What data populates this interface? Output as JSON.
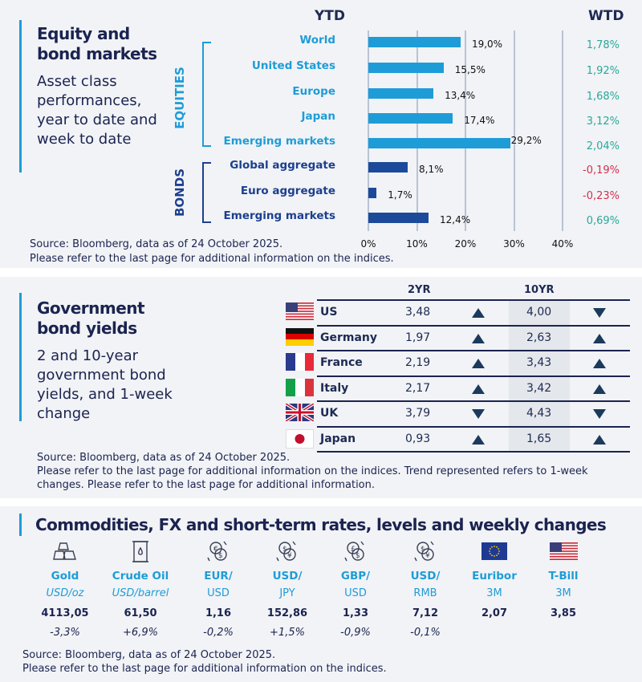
{
  "section1": {
    "title": "Equity and bond markets",
    "subtitle": "Asset class performances, year to date and week to date",
    "ytd_header": "YTD",
    "wtd_header": "WTD",
    "group_equities": "EQUITIES",
    "group_bonds": "BONDS",
    "source": "Source: Bloomberg, data as of 24 October 2025.",
    "note": "Please refer to the last page for additional information on the indices."
  },
  "chart_data": {
    "type": "bar",
    "orientation": "horizontal",
    "categories": [
      "World",
      "United States",
      "Europe",
      "Japan",
      "Emerging  markets",
      "Global aggregate",
      "Euro aggregate",
      "Emerging  markets"
    ],
    "groups": [
      "EQUITIES",
      "EQUITIES",
      "EQUITIES",
      "EQUITIES",
      "EQUITIES",
      "BONDS",
      "BONDS",
      "BONDS"
    ],
    "values": [
      19.0,
      15.5,
      13.4,
      17.4,
      29.2,
      8.1,
      1.7,
      12.4
    ],
    "value_labels": [
      "19,0%",
      "15,5%",
      "13,4%",
      "17,4%",
      "29,2%",
      "8,1%",
      "1,7%",
      "12,4%"
    ],
    "wtd": [
      "1,78%",
      "1,92%",
      "1,68%",
      "3,12%",
      "2,04%",
      "-0,19%",
      "-0,23%",
      "0,69%"
    ],
    "xlim": [
      0,
      40
    ],
    "xticks": [
      "0%",
      "10%",
      "20%",
      "30%",
      "40%"
    ],
    "grid": true,
    "colors": {
      "equities": "#1e9cd7",
      "bonds": "#1c4a9a",
      "positive": "#2aa89a",
      "negative": "#d3304f"
    }
  },
  "section2": {
    "title": "Government bond yields",
    "subtitle": "2 and 10-year government bond yields, and 1-week change",
    "col_2yr": "2YR",
    "col_10yr": "10YR",
    "source": "Source: Bloomberg, data as of 24 October 2025.",
    "note": "Please refer to the last page for additional information on the indices. Trend represented refers to 1-week changes. Please refer to the last page for additional information.",
    "rows": [
      {
        "country": "US",
        "flag": "us",
        "y2": "3,48",
        "t2": "up",
        "y10": "4,00",
        "t10": "down"
      },
      {
        "country": "Germany",
        "flag": "de",
        "y2": "1,97",
        "t2": "up",
        "y10": "2,63",
        "t10": "up"
      },
      {
        "country": "France",
        "flag": "fr",
        "y2": "2,19",
        "t2": "up",
        "y10": "3,43",
        "t10": "up"
      },
      {
        "country": "Italy",
        "flag": "it",
        "y2": "2,17",
        "t2": "up",
        "y10": "3,42",
        "t10": "up"
      },
      {
        "country": "UK",
        "flag": "uk",
        "y2": "3,79",
        "t2": "down",
        "y10": "4,43",
        "t10": "down"
      },
      {
        "country": "Japan",
        "flag": "jp",
        "y2": "0,93",
        "t2": "up",
        "y10": "1,65",
        "t10": "up"
      }
    ]
  },
  "section3": {
    "title": "Commodities, FX and short-term rates, levels and weekly changes",
    "source": "Source: Bloomberg, data as of 24 October 2025.",
    "note": "Please refer to the last page for additional information on the indices.",
    "items": [
      {
        "icon": "gold-bars-icon",
        "l1": "Gold",
        "l2": "USD/oz",
        "italic": true,
        "value": "4113,05",
        "change": "-3,3%"
      },
      {
        "icon": "oil-barrel-icon",
        "l1": "Crude Oil",
        "l2": "USD/barrel",
        "italic": true,
        "value": "61,50",
        "change": "+6,9%"
      },
      {
        "icon": "currency-exchange-icon",
        "glyph": "€$",
        "l1": "EUR/",
        "l2": "USD",
        "value": "1,16",
        "change": "-0,2%"
      },
      {
        "icon": "currency-exchange-icon",
        "glyph": "$¥",
        "l1": "USD/",
        "l2": "JPY",
        "value": "152,86",
        "change": "+1,5%"
      },
      {
        "icon": "currency-exchange-icon",
        "glyph": "£$",
        "l1": "GBP/",
        "l2": "USD",
        "value": "1,33",
        "change": "-0,9%"
      },
      {
        "icon": "currency-exchange-icon",
        "glyph": "$¥",
        "l1": "USD/",
        "l2": "RMB",
        "value": "7,12",
        "change": "-0,1%"
      },
      {
        "icon": "eu-flag-icon",
        "l1": "Euribor",
        "l2": "3M",
        "value": "2,07",
        "change": ""
      },
      {
        "icon": "us-flag-icon",
        "l1": "T-Bill",
        "l2": "3M",
        "value": "3,85",
        "change": ""
      }
    ]
  }
}
